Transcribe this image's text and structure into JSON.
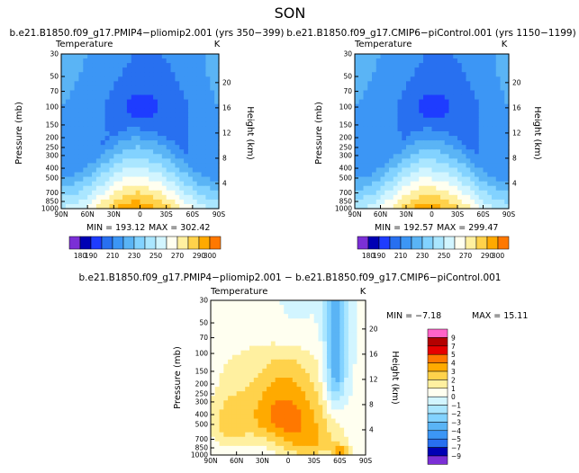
{
  "figure_title": "SON",
  "colors": {
    "abs_fills": [
      "#7b2fd6",
      "#0000b4",
      "#1e3cff",
      "#2870f0",
      "#3c96f5",
      "#5ab4f5",
      "#82d2ff",
      "#aae6ff",
      "#d2f5ff",
      "#fffff0",
      "#fff0a0",
      "#ffd24b",
      "#ffaa00",
      "#ff7800",
      "#ff3c00",
      "#e60000",
      "#b40000",
      "#8c0a14",
      "#ff64c8"
    ],
    "diff_fills": [
      "#7b2fd6",
      "#0000b4",
      "#1e3cff",
      "#2870f0",
      "#3c96f5",
      "#5ab4f5",
      "#82d2ff",
      "#aae6ff",
      "#d2f5ff",
      "#fffff0",
      "#fff0a0",
      "#ffd24b",
      "#ffaa00",
      "#ff7800",
      "#ff3c00",
      "#e60000",
      "#b40000",
      "#8c0a14",
      "#ff64c8"
    ],
    "panel_background": "#ffffff",
    "contour_line": "#6a6a6a"
  },
  "chart_data": [
    {
      "type": "heatmap",
      "title": "b.e21.B1850.f09_g17.PMIP4−pliomip2.001  (yrs  350−399)",
      "subtitle": "Temperature",
      "units": "K",
      "ylabel": "Pressure (mb)",
      "y2label": "Height (km)",
      "xticks": [
        "90N",
        "60N",
        "30N",
        "0",
        "30S",
        "60S",
        "90S"
      ],
      "yticks": [
        "30",
        "50",
        "70",
        "100",
        "150",
        "200",
        "250",
        "300",
        "400",
        "500",
        "700",
        "850",
        "1000"
      ],
      "y2ticks": [
        "20",
        "16",
        "12",
        "8",
        "4"
      ],
      "min_label": "MIN = 193.12",
      "max_label": "MAX = 302.42",
      "min": 193.12,
      "max": 302.42,
      "levels": [
        180,
        190,
        200,
        210,
        220,
        230,
        240,
        250,
        260,
        270,
        280,
        290,
        300
      ],
      "colorbar_labels": [
        "180",
        "190",
        "210",
        "230",
        "250",
        "270",
        "290",
        "300"
      ],
      "colorbar_label_levels": [
        180,
        190,
        210,
        230,
        250,
        270,
        290,
        300
      ]
    },
    {
      "type": "heatmap",
      "title": "b.e21.B1850.f09_g17.CMIP6−piControl.001  (yrs  1150−1199)",
      "subtitle": "Temperature",
      "units": "K",
      "ylabel": "Pressure (mb)",
      "y2label": "Height (km)",
      "xticks": [
        "90N",
        "60N",
        "30N",
        "0",
        "30S",
        "60S",
        "90S"
      ],
      "yticks": [
        "30",
        "50",
        "70",
        "100",
        "150",
        "200",
        "250",
        "300",
        "400",
        "500",
        "700",
        "850",
        "1000"
      ],
      "y2ticks": [
        "20",
        "16",
        "12",
        "8",
        "4"
      ],
      "min_label": "MIN = 192.57",
      "max_label": "MAX = 299.47",
      "min": 192.57,
      "max": 299.47,
      "levels": [
        180,
        190,
        200,
        210,
        220,
        230,
        240,
        250,
        260,
        270,
        280,
        290,
        300
      ],
      "colorbar_labels": [
        "180",
        "190",
        "210",
        "230",
        "250",
        "270",
        "290",
        "300"
      ],
      "colorbar_label_levels": [
        180,
        190,
        210,
        230,
        250,
        270,
        290,
        300
      ]
    },
    {
      "type": "heatmap",
      "title": "b.e21.B1850.f09_g17.PMIP4−pliomip2.001  −  b.e21.B1850.f09_g17.CMIP6−piControl.001",
      "subtitle": "Temperature",
      "units": "K",
      "ylabel": "Pressure (mb)",
      "y2label": "Height (km)",
      "xticks": [
        "90N",
        "60N",
        "30N",
        "0",
        "30S",
        "60S",
        "90S"
      ],
      "yticks": [
        "30",
        "50",
        "70",
        "100",
        "150",
        "200",
        "250",
        "300",
        "400",
        "500",
        "700",
        "850",
        "1000"
      ],
      "y2ticks": [
        "20",
        "16",
        "12",
        "8",
        "4"
      ],
      "min_label": "MIN =  −7.18",
      "max_label": "MAX =  15.11",
      "min": -7.18,
      "max": 15.11,
      "levels": [
        -9,
        -7,
        -5,
        -4,
        -3,
        -2,
        -1,
        0,
        1,
        2,
        3,
        4,
        5,
        7,
        9
      ],
      "colorbar_labels": [
        "9",
        "7",
        "5",
        "4",
        "3",
        "2",
        "1",
        "0",
        "−1",
        "−2",
        "−3",
        "−4",
        "−5",
        "−7",
        "−9"
      ]
    }
  ]
}
